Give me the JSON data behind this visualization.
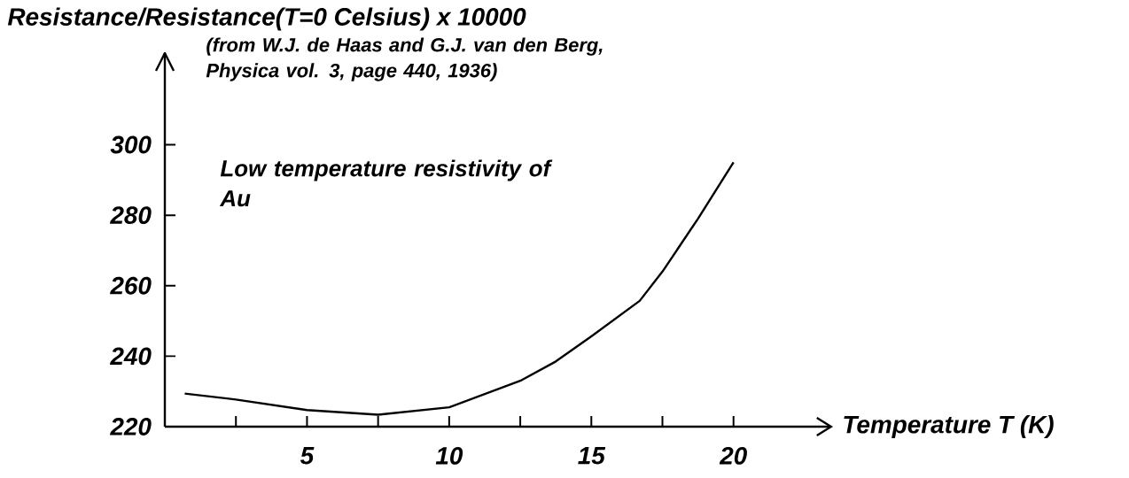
{
  "chart_data": {
    "type": "line",
    "xlabel": "Temperature T (K)",
    "ylabel": "Resistance/Resistance(T=0 Celsius) x 10000",
    "annotations": [
      "(from W.J. de Haas and G.J. van den Berg, Physica vol. 3, page 440, 1936)",
      "Low temperature resistivity of Au"
    ],
    "x": [
      0.7,
      2.5,
      5,
      7.5,
      10,
      12.5,
      13.75,
      15,
      16.7,
      17.5,
      18.75,
      20
    ],
    "series": [
      {
        "color": "#000000",
        "values": [
          229.4,
          227.7,
          224.7,
          223.4,
          225.5,
          233,
          238.5,
          245.6,
          255.7,
          264,
          279,
          295
        ]
      }
    ],
    "xlim": [
      0,
      23.5
    ],
    "ylim": [
      220,
      326
    ],
    "xticks": [
      {
        "value": 2.5,
        "label": null
      },
      5,
      {
        "value": 7.5,
        "label": null
      },
      10,
      {
        "value": 12.5,
        "label": null
      },
      15,
      {
        "value": 17.5,
        "label": null
      },
      20
    ],
    "yticks": [
      220,
      240,
      260,
      280,
      300
    ],
    "marker": "none",
    "line_style": "solid"
  }
}
